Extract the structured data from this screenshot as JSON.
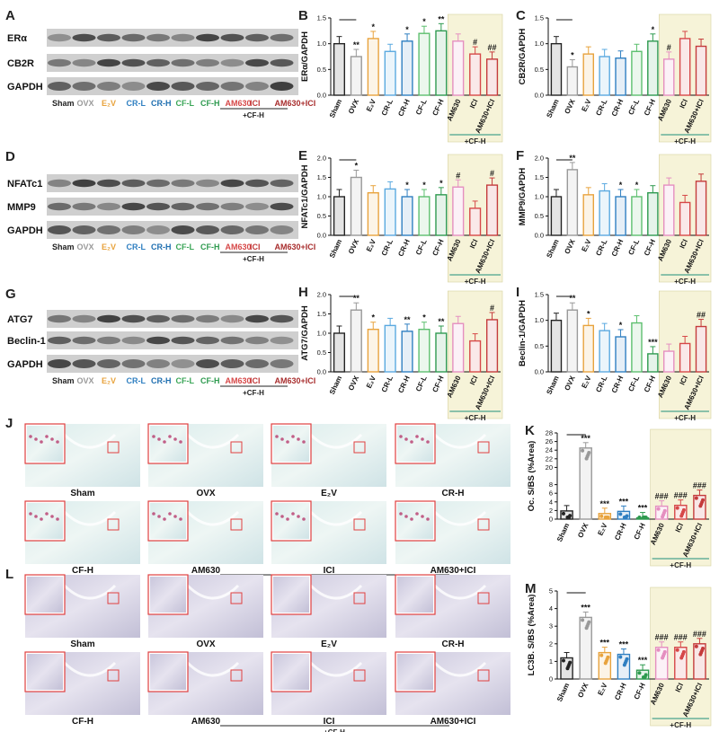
{
  "panels": {
    "blot_A": {
      "letter": "A",
      "rows": [
        "ERα",
        "CB2R",
        "GAPDH"
      ]
    },
    "blot_D": {
      "letter": "D",
      "rows": [
        "NFATc1",
        "MMP9",
        "GAPDH"
      ]
    },
    "blot_G": {
      "letter": "G",
      "rows": [
        "ATG7",
        "Beclin-1",
        "GAPDH"
      ]
    },
    "lanes": [
      "Sham",
      "OVX",
      "E₂V",
      "CR-L",
      "CR-H",
      "CF-L",
      "CF-H",
      "AM630",
      "ICI",
      "AM630+ICI"
    ],
    "lane_colors": [
      "#222222",
      "#999999",
      "#e8a33d",
      "#2f7fc1",
      "#1f6fb0",
      "#3aa657",
      "#2e9a4f",
      "#d64848",
      "#c23a3a",
      "#a82e2e"
    ],
    "blot_cfh_label": "+CF-H",
    "hist_J": {
      "letter": "J",
      "labels": [
        "Sham",
        "OVX",
        "E₂V",
        "CR-H",
        "CF-H",
        "AM630",
        "ICI",
        "AM630+ICI"
      ],
      "group_label": "+CF-H"
    },
    "hist_L": {
      "letter": "L",
      "labels": [
        "Sham",
        "OVX",
        "E₂V",
        "CR-H",
        "CF-H",
        "AM630",
        "ICI",
        "AM630+ICI"
      ],
      "group_label": "+CF-H"
    }
  },
  "chart_data": [
    {
      "panel": "B",
      "type": "bar",
      "ylabel": "ERα/GAPDH",
      "ylim": [
        0,
        1.5
      ],
      "yticks": [
        "0.0",
        "0.5",
        "1.0",
        "1.5"
      ],
      "categories": [
        "Sham",
        "OVX",
        "E₂V",
        "CR-L",
        "CR-H",
        "CF-L",
        "CF-H",
        "AM630",
        "ICI",
        "AM630+ICI"
      ],
      "values": [
        1.0,
        0.75,
        1.1,
        0.85,
        1.05,
        1.2,
        1.25,
        1.05,
        0.8,
        0.7
      ],
      "sig": [
        "",
        "**",
        "*",
        "",
        "*",
        "*",
        "**",
        "",
        "#",
        "##"
      ],
      "group_label": "+CF-H"
    },
    {
      "panel": "C",
      "type": "bar",
      "ylabel": "CB2R/GAPDH",
      "ylim": [
        0,
        1.5
      ],
      "yticks": [
        "0.0",
        "0.5",
        "1.0",
        "1.5"
      ],
      "categories": [
        "Sham",
        "OVX",
        "E₂V",
        "CR-L",
        "CR-H",
        "CF-L",
        "CF-H",
        "AM630",
        "ICI",
        "AM630+ICI"
      ],
      "values": [
        1.0,
        0.55,
        0.8,
        0.75,
        0.72,
        0.85,
        1.05,
        0.7,
        1.1,
        0.95
      ],
      "sig": [
        "",
        "*",
        "",
        "",
        "",
        "",
        "*",
        "#",
        "",
        ""
      ],
      "group_label": "+CF-H"
    },
    {
      "panel": "E",
      "type": "bar",
      "ylabel": "NFATc1/GAPDH",
      "ylim": [
        0,
        2.0
      ],
      "yticks": [
        "0.0",
        "0.5",
        "1.0",
        "1.5",
        "2.0"
      ],
      "categories": [
        "Sham",
        "OVX",
        "E₂V",
        "CR-L",
        "CR-H",
        "CF-L",
        "CF-H",
        "AM630",
        "ICI",
        "AM630+ICI"
      ],
      "values": [
        1.0,
        1.5,
        1.1,
        1.2,
        1.0,
        1.0,
        1.05,
        1.25,
        0.7,
        1.3
      ],
      "sig": [
        "",
        "*",
        "",
        "",
        "*",
        "*",
        "*",
        "#",
        "",
        "#"
      ],
      "group_label": "+CF-H"
    },
    {
      "panel": "F",
      "type": "bar",
      "ylabel": "MMP9/GAPDH",
      "ylim": [
        0,
        2.0
      ],
      "yticks": [
        "0.0",
        "0.5",
        "1.0",
        "1.5",
        "2.0"
      ],
      "categories": [
        "Sham",
        "OVX",
        "E₂V",
        "CR-L",
        "CR-H",
        "CF-L",
        "CF-H",
        "AM630",
        "ICI",
        "AM630+ICI"
      ],
      "values": [
        1.0,
        1.7,
        1.05,
        1.15,
        1.0,
        1.0,
        1.1,
        1.3,
        0.85,
        1.4
      ],
      "sig": [
        "",
        "**",
        "",
        "",
        "*",
        "*",
        "",
        "",
        "",
        ""
      ],
      "group_label": "+CF-H"
    },
    {
      "panel": "H",
      "type": "bar",
      "ylabel": "ATG7/GAPDH",
      "ylim": [
        0,
        2.0
      ],
      "yticks": [
        "0.0",
        "0.5",
        "1.0",
        "1.5",
        "2.0"
      ],
      "categories": [
        "Sham",
        "OVX",
        "E₂V",
        "CR-L",
        "CR-H",
        "CF-L",
        "CF-H",
        "AM630",
        "ICI",
        "AM630+ICI"
      ],
      "values": [
        1.0,
        1.6,
        1.1,
        1.2,
        1.05,
        1.1,
        1.0,
        1.25,
        0.8,
        1.35
      ],
      "sig": [
        "",
        "**",
        "*",
        "",
        "**",
        "*",
        "**",
        "",
        "",
        "#"
      ],
      "group_label": "+CF-H"
    },
    {
      "panel": "I",
      "type": "bar",
      "ylabel": "Beclin-1/GAPDH",
      "ylim": [
        0,
        1.5
      ],
      "yticks": [
        "0.0",
        "0.5",
        "1.0",
        "1.5"
      ],
      "categories": [
        "Sham",
        "OVX",
        "E₂V",
        "CR-L",
        "CR-H",
        "CF-L",
        "CF-H",
        "AM630",
        "ICI",
        "AM630+ICI"
      ],
      "values": [
        1.0,
        1.2,
        0.9,
        0.8,
        0.68,
        0.95,
        0.35,
        0.4,
        0.55,
        0.88
      ],
      "sig": [
        "",
        "**",
        "*",
        "",
        "*",
        "",
        "***",
        "",
        "",
        "##"
      ],
      "group_label": "+CF-H"
    },
    {
      "panel": "K",
      "type": "bar",
      "ylabel": "Oc. S/BS (%Area)",
      "ylim": [
        0,
        30
      ],
      "yticks": [
        "0",
        "2",
        "4",
        "6",
        "8",
        "20",
        "22",
        "24",
        "26",
        "28"
      ],
      "categories": [
        "Sham",
        "OVX",
        "E₂V",
        "CR-H",
        "CF-H",
        "AM630",
        "ICI",
        "AM630+ICI"
      ],
      "values": [
        1.9,
        24.5,
        1.3,
        1.8,
        0.3,
        3.0,
        3.2,
        5.5
      ],
      "sig": [
        "",
        "***",
        "***",
        "***",
        "***",
        "###",
        "###",
        "###"
      ],
      "group_label": "+CF-H"
    },
    {
      "panel": "M",
      "type": "bar",
      "ylabel": "LC3B. S/BS (%Area)",
      "ylim": [
        0,
        5
      ],
      "yticks": [
        "0",
        "1",
        "2",
        "3",
        "4",
        "5"
      ],
      "categories": [
        "Sham",
        "OVX",
        "E₂V",
        "CR-H",
        "CF-H",
        "AM630",
        "ICI",
        "AM630+ICI"
      ],
      "values": [
        1.2,
        3.5,
        1.5,
        1.4,
        0.5,
        1.8,
        1.8,
        2.0
      ],
      "sig": [
        "",
        "***",
        "***",
        "***",
        "***",
        "###",
        "###",
        "###"
      ],
      "group_label": "+CF-H"
    }
  ]
}
